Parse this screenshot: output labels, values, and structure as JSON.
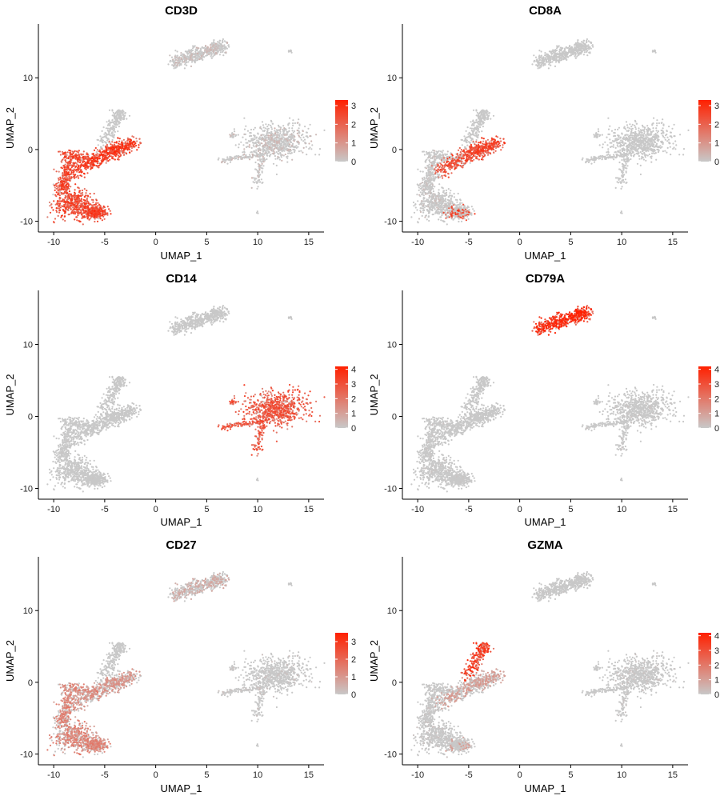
{
  "figure": {
    "type": "umap_feature_plots",
    "rows": 3,
    "cols": 2
  },
  "colors": {
    "low": "#c8c8c8",
    "high": "#ff2000"
  },
  "chart_data": [
    {
      "type": "scatter",
      "title": "CD3D",
      "xlabel": "UMAP_1",
      "ylabel": "UMAP_2",
      "xticks": [
        -10,
        -5,
        0,
        5,
        10,
        15
      ],
      "yticks": [
        -10,
        0,
        10
      ],
      "xlim": [
        -11.5,
        16.5
      ],
      "ylim": [
        -11.5,
        17.5
      ],
      "grid": false,
      "legend": {
        "position": "right",
        "range": [
          0,
          3.3
        ],
        "ticks": [
          0,
          1,
          2,
          3
        ]
      },
      "cluster_expression": {
        "t_cells": 2.2,
        "cd8_t": 2.4,
        "b_cells": 0.3,
        "monocytes": 0.3,
        "platelets": 0
      }
    },
    {
      "type": "scatter",
      "title": "CD8A",
      "xlabel": "UMAP_1",
      "ylabel": "UMAP_2",
      "xticks": [
        -10,
        -5,
        0,
        5,
        10,
        15
      ],
      "yticks": [
        -10,
        0,
        10
      ],
      "xlim": [
        -11.5,
        16.5
      ],
      "ylim": [
        -11.5,
        17.5
      ],
      "grid": false,
      "legend": {
        "position": "right",
        "range": [
          0,
          3.3
        ],
        "ticks": [
          0,
          1,
          2,
          3
        ]
      },
      "cluster_expression": {
        "t_cells": 0.2,
        "cd8_t": 2.2,
        "b_cells": 0.02,
        "monocytes": 0.03,
        "platelets": 0
      }
    },
    {
      "type": "scatter",
      "title": "CD14",
      "xlabel": "UMAP_1",
      "ylabel": "UMAP_2",
      "xticks": [
        -10,
        -5,
        0,
        5,
        10,
        15
      ],
      "yticks": [
        -10,
        0,
        10
      ],
      "xlim": [
        -11.5,
        16.5
      ],
      "ylim": [
        -11.5,
        17.5
      ],
      "grid": false,
      "legend": {
        "position": "right",
        "range": [
          0,
          4.2
        ],
        "ticks": [
          0,
          1,
          2,
          3,
          4
        ]
      },
      "cluster_expression": {
        "t_cells": 0.05,
        "cd8_t": 0.02,
        "b_cells": 0.02,
        "monocytes": 2.6,
        "platelets": 0
      }
    },
    {
      "type": "scatter",
      "title": "CD79A",
      "xlabel": "UMAP_1",
      "ylabel": "UMAP_2",
      "xticks": [
        -10,
        -5,
        0,
        5,
        10,
        15
      ],
      "yticks": [
        -10,
        0,
        10
      ],
      "xlim": [
        -11.5,
        16.5
      ],
      "ylim": [
        -11.5,
        17.5
      ],
      "grid": false,
      "legend": {
        "position": "right",
        "range": [
          0,
          4.2
        ],
        "ticks": [
          0,
          1,
          2,
          3,
          4
        ]
      },
      "cluster_expression": {
        "t_cells": 0.1,
        "cd8_t": 0.05,
        "b_cells": 3.4,
        "monocytes": 0.1,
        "platelets": 0
      }
    },
    {
      "type": "scatter",
      "title": "CD27",
      "xlabel": "UMAP_1",
      "ylabel": "UMAP_2",
      "xticks": [
        -10,
        -5,
        0,
        5,
        10,
        15
      ],
      "yticks": [
        -10,
        0,
        10
      ],
      "xlim": [
        -11.5,
        16.5
      ],
      "ylim": [
        -11.5,
        17.5
      ],
      "grid": false,
      "legend": {
        "position": "right",
        "range": [
          0,
          3.5
        ],
        "ticks": [
          0,
          1,
          2,
          3
        ]
      },
      "cluster_expression": {
        "t_cells": 1.3,
        "cd8_t": 1.0,
        "b_cells": 0.6,
        "monocytes": 0.15,
        "platelets": 0
      }
    },
    {
      "type": "scatter",
      "title": "GZMA",
      "xlabel": "UMAP_1",
      "ylabel": "UMAP_2",
      "xticks": [
        -10,
        -5,
        0,
        5,
        10,
        15
      ],
      "yticks": [
        -10,
        0,
        10
      ],
      "xlim": [
        -11.5,
        16.5
      ],
      "ylim": [
        -11.5,
        17.5
      ],
      "grid": false,
      "legend": {
        "position": "right",
        "range": [
          0,
          4.2
        ],
        "ticks": [
          0,
          1,
          2,
          3,
          4
        ]
      },
      "cluster_expression": {
        "t_cells": 0.15,
        "cd8_t": 1.0,
        "nk_cells": 3.0,
        "b_cells": 0.05,
        "monocytes": 0.15,
        "platelets": 0
      }
    }
  ]
}
